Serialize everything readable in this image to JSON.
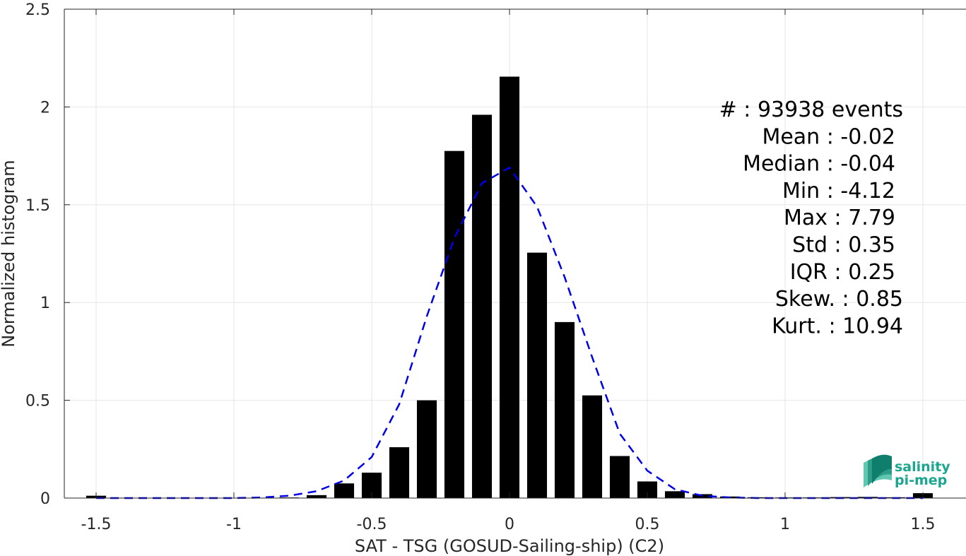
{
  "chart_data": {
    "type": "bar",
    "xlabel": "SAT - TSG (GOSUD-Sailing-ship) (C2)",
    "ylabel": "Normalized histogram",
    "xlim": [
      -1.6,
      1.6
    ],
    "ylim": [
      0,
      2.5
    ],
    "xticks": [
      -1.5,
      -1,
      -0.5,
      0,
      0.5,
      1,
      1.5
    ],
    "xtick_labels": [
      "-1.5",
      "-1",
      "-0.5",
      "0",
      "0.5",
      "1",
      "1.5"
    ],
    "yticks": [
      0,
      0.5,
      1,
      1.5,
      2,
      2.5
    ],
    "ytick_labels": [
      "0",
      "0.5",
      "1",
      "1.5",
      "2",
      "2.5"
    ],
    "grid": true,
    "bar_color": "#000000",
    "bar_width": 0.072,
    "bars": [
      {
        "x": -1.5,
        "y": 0.012
      },
      {
        "x": -1.4,
        "y": 0.002
      },
      {
        "x": -1.3,
        "y": 0.001
      },
      {
        "x": -1.2,
        "y": 0.001
      },
      {
        "x": -1.1,
        "y": 0.001
      },
      {
        "x": -1.0,
        "y": 0.001
      },
      {
        "x": -0.9,
        "y": 0.002
      },
      {
        "x": -0.8,
        "y": 0.003
      },
      {
        "x": -0.7,
        "y": 0.015
      },
      {
        "x": -0.6,
        "y": 0.075
      },
      {
        "x": -0.5,
        "y": 0.13
      },
      {
        "x": -0.4,
        "y": 0.26
      },
      {
        "x": -0.3,
        "y": 0.5
      },
      {
        "x": -0.2,
        "y": 1.775
      },
      {
        "x": -0.1,
        "y": 1.96
      },
      {
        "x": 0.0,
        "y": 2.155
      },
      {
        "x": 0.1,
        "y": 1.255
      },
      {
        "x": 0.2,
        "y": 0.9
      },
      {
        "x": 0.3,
        "y": 0.525
      },
      {
        "x": 0.4,
        "y": 0.215
      },
      {
        "x": 0.5,
        "y": 0.085
      },
      {
        "x": 0.6,
        "y": 0.035
      },
      {
        "x": 0.7,
        "y": 0.02
      },
      {
        "x": 0.8,
        "y": 0.008
      },
      {
        "x": 0.9,
        "y": 0.004
      },
      {
        "x": 1.0,
        "y": 0.003
      },
      {
        "x": 1.1,
        "y": 0.003
      },
      {
        "x": 1.2,
        "y": 0.005
      },
      {
        "x": 1.3,
        "y": 0.006
      },
      {
        "x": 1.4,
        "y": 0.004
      },
      {
        "x": 1.5,
        "y": 0.025
      }
    ],
    "fit_curve": {
      "style": "dashed",
      "color": "#0000e6",
      "points": [
        [
          -1.5,
          0.0
        ],
        [
          -1.4,
          0.0
        ],
        [
          -1.3,
          0.0
        ],
        [
          -1.2,
          0.0
        ],
        [
          -1.1,
          0.0
        ],
        [
          -1.0,
          0.0
        ],
        [
          -0.9,
          0.003
        ],
        [
          -0.8,
          0.012
        ],
        [
          -0.7,
          0.035
        ],
        [
          -0.6,
          0.09
        ],
        [
          -0.5,
          0.21
        ],
        [
          -0.4,
          0.48
        ],
        [
          -0.3,
          0.93
        ],
        [
          -0.2,
          1.33
        ],
        [
          -0.1,
          1.61
        ],
        [
          0.0,
          1.69
        ],
        [
          0.1,
          1.49
        ],
        [
          0.2,
          1.13
        ],
        [
          0.3,
          0.72
        ],
        [
          0.4,
          0.33
        ],
        [
          0.5,
          0.14
        ],
        [
          0.6,
          0.045
        ],
        [
          0.7,
          0.012
        ],
        [
          0.8,
          0.003
        ],
        [
          0.9,
          0.0
        ],
        [
          1.0,
          0.0
        ],
        [
          1.1,
          0.0
        ],
        [
          1.2,
          0.0
        ],
        [
          1.3,
          0.0
        ],
        [
          1.4,
          0.0
        ],
        [
          1.5,
          0.0
        ]
      ]
    }
  },
  "stats": [
    "#  : 93938 events",
    "Mean : -0.02",
    "Median : -0.04",
    "Min : -4.12",
    "Max : 7.79",
    "Std : 0.35",
    "IQR : 0.25",
    "Skew. : 0.85",
    "Kurt. : 10.94"
  ],
  "logo": {
    "line1": "salinity",
    "line2": "pi-mep",
    "color": "#1aa68f"
  }
}
